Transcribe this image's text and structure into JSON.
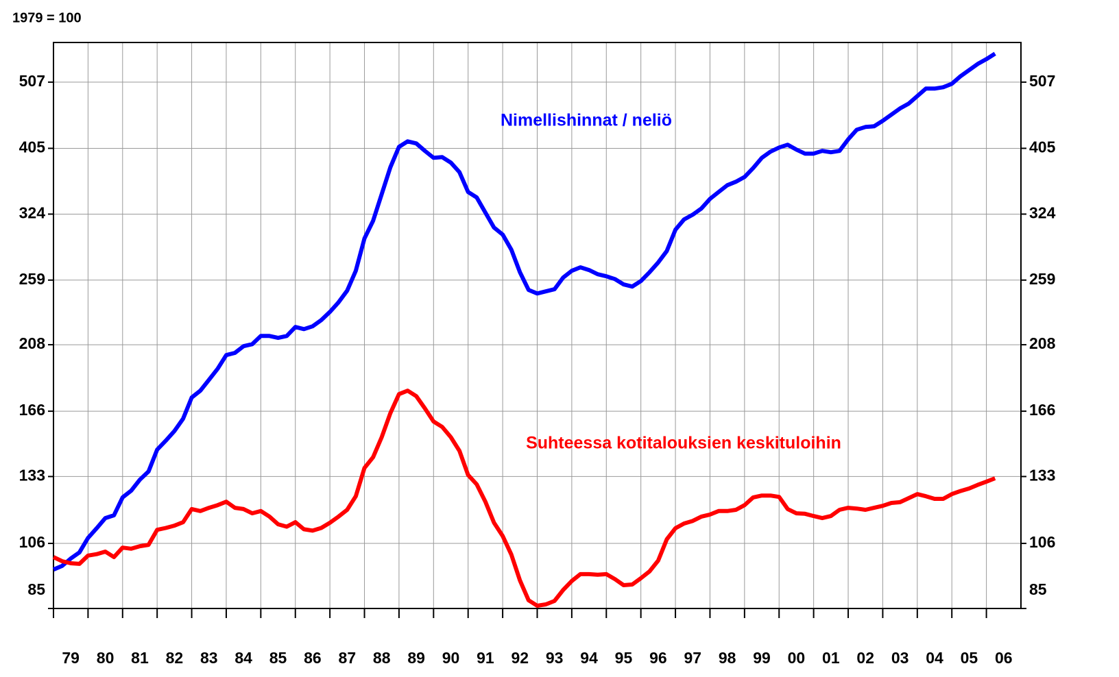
{
  "chart_data": {
    "type": "line",
    "subtitle": "1979 = 100",
    "log_scale": true,
    "grid": true,
    "x": [
      1979,
      1979.25,
      1979.5,
      1979.75,
      1980,
      1980.25,
      1980.5,
      1980.75,
      1981,
      1981.25,
      1981.5,
      1981.75,
      1982,
      1982.25,
      1982.5,
      1982.75,
      1983,
      1983.25,
      1983.5,
      1983.75,
      1984,
      1984.25,
      1984.5,
      1984.75,
      1985,
      1985.25,
      1985.5,
      1985.75,
      1986,
      1986.25,
      1986.5,
      1986.75,
      1987,
      1987.25,
      1987.5,
      1987.75,
      1988,
      1988.25,
      1988.5,
      1988.75,
      1989,
      1989.25,
      1989.5,
      1989.75,
      1990,
      1990.25,
      1990.5,
      1990.75,
      1991,
      1991.25,
      1991.5,
      1991.75,
      1992,
      1992.25,
      1992.5,
      1992.75,
      1993,
      1993.25,
      1993.5,
      1993.75,
      1994,
      1994.25,
      1994.5,
      1994.75,
      1995,
      1995.25,
      1995.5,
      1995.75,
      1996,
      1996.25,
      1996.5,
      1996.75,
      1997,
      1997.25,
      1997.5,
      1997.75,
      1998,
      1998.25,
      1998.5,
      1998.75,
      1999,
      1999.25,
      1999.5,
      1999.75,
      2000,
      2000.25,
      2000.5,
      2000.75,
      2001,
      2001.25,
      2001.5,
      2001.75,
      2002,
      2002.25,
      2002.5,
      2002.75,
      2003,
      2003.25,
      2003.5,
      2003.75,
      2004,
      2004.25,
      2004.5,
      2004.75,
      2005,
      2005.25,
      2005.5,
      2005.75,
      2006,
      2006.25
    ],
    "series": [
      {
        "name": "Nimellishinnat / neliö",
        "color": "#0000ff",
        "values": [
          97.0,
          98.2,
          100.7,
          102.8,
          108,
          111.6,
          115.5,
          116.6,
          123.9,
          126.8,
          131.6,
          135.3,
          145.7,
          150.2,
          155.2,
          161.8,
          173.9,
          178,
          184.7,
          191.7,
          200.8,
          202.3,
          207,
          208.4,
          214.3,
          214.3,
          212.9,
          214.3,
          220.9,
          219.3,
          221.4,
          226.1,
          232.5,
          240.2,
          249.9,
          267.3,
          298.2,
          316.7,
          346.7,
          379.7,
          407.1,
          414.7,
          411.8,
          401.5,
          392.2,
          393.1,
          385.9,
          373.5,
          349.2,
          342.8,
          325.7,
          309.5,
          302.3,
          287.3,
          266,
          250.5,
          247.5,
          249.3,
          251.1,
          261.2,
          267.3,
          270.5,
          268,
          264.2,
          262.4,
          259.9,
          255.2,
          253.4,
          258.2,
          266,
          274.9,
          285.9,
          307.3,
          318.2,
          323.4,
          330.2,
          341.2,
          349.2,
          357.4,
          361.6,
          367.5,
          378.8,
          392.2,
          400.5,
          406.1,
          410,
          403.3,
          397.8,
          397.8,
          401.5,
          399.6,
          401.5,
          417.5,
          431.4,
          435.4,
          436.5,
          444.6,
          454.1,
          463.7,
          471.3,
          483.5,
          496,
          496,
          498.3,
          504.1,
          517.2,
          528.1,
          539.3,
          548.1,
          558.4
        ]
      },
      {
        "name": "Suhteessa kotitalouksien keskituloihin",
        "color": "#ff0000",
        "values": [
          101.2,
          99.8,
          99.1,
          98.9,
          101.7,
          102.2,
          103.1,
          101.2,
          104.5,
          104.1,
          105,
          105.5,
          111,
          111.7,
          112.6,
          113.9,
          119.1,
          118.3,
          119.6,
          120.7,
          122.1,
          119.6,
          119.1,
          117.4,
          118.3,
          116.1,
          113.1,
          112.2,
          113.9,
          111.2,
          110.7,
          111.7,
          113.7,
          116.1,
          118.8,
          124.4,
          136.9,
          142,
          152,
          164.9,
          175.9,
          178,
          174.7,
          167.6,
          160.3,
          157.4,
          152,
          145.1,
          133.7,
          129.5,
          122.1,
          113.7,
          108.7,
          102.1,
          93.5,
          87.4,
          85.8,
          86.2,
          87.2,
          90.5,
          93.3,
          95.5,
          95.5,
          95.3,
          95.5,
          93.9,
          92,
          92.2,
          94.2,
          96.4,
          100,
          107.5,
          111.6,
          113.4,
          114.4,
          116.1,
          116.9,
          118.3,
          118.3,
          118.8,
          120.7,
          123.9,
          124.7,
          124.7,
          124.1,
          119.1,
          117.4,
          117.2,
          116.3,
          115.5,
          116.3,
          118.8,
          119.6,
          119.3,
          118.8,
          119.6,
          120.4,
          121.6,
          121.9,
          123.6,
          125.3,
          124.4,
          123.3,
          123.3,
          125.3,
          126.6,
          127.7,
          129.3,
          130.7,
          132.2
        ]
      }
    ],
    "xlim": [
      1979,
      2007
    ],
    "xticks": [
      {
        "value": 1979,
        "label": "79"
      },
      {
        "value": 1980,
        "label": "80"
      },
      {
        "value": 1981,
        "label": "81"
      },
      {
        "value": 1982,
        "label": "82"
      },
      {
        "value": 1983,
        "label": "83"
      },
      {
        "value": 1984,
        "label": "84"
      },
      {
        "value": 1985,
        "label": "85"
      },
      {
        "value": 1986,
        "label": "86"
      },
      {
        "value": 1987,
        "label": "87"
      },
      {
        "value": 1988,
        "label": "88"
      },
      {
        "value": 1989,
        "label": "89"
      },
      {
        "value": 1990,
        "label": "90"
      },
      {
        "value": 1991,
        "label": "91"
      },
      {
        "value": 1992,
        "label": "92"
      },
      {
        "value": 1993,
        "label": "93"
      },
      {
        "value": 1994,
        "label": "94"
      },
      {
        "value": 1995,
        "label": "95"
      },
      {
        "value": 1996,
        "label": "96"
      },
      {
        "value": 1997,
        "label": "97"
      },
      {
        "value": 1998,
        "label": "98"
      },
      {
        "value": 1999,
        "label": "99"
      },
      {
        "value": 2000,
        "label": "00"
      },
      {
        "value": 2001,
        "label": "01"
      },
      {
        "value": 2002,
        "label": "02"
      },
      {
        "value": 2003,
        "label": "03"
      },
      {
        "value": 2004,
        "label": "04"
      },
      {
        "value": 2005,
        "label": "05"
      },
      {
        "value": 2006,
        "label": "06"
      }
    ],
    "ylim": [
      85,
      580
    ],
    "yticks": [
      85,
      106,
      133,
      166,
      208,
      259,
      324,
      405,
      507
    ]
  }
}
